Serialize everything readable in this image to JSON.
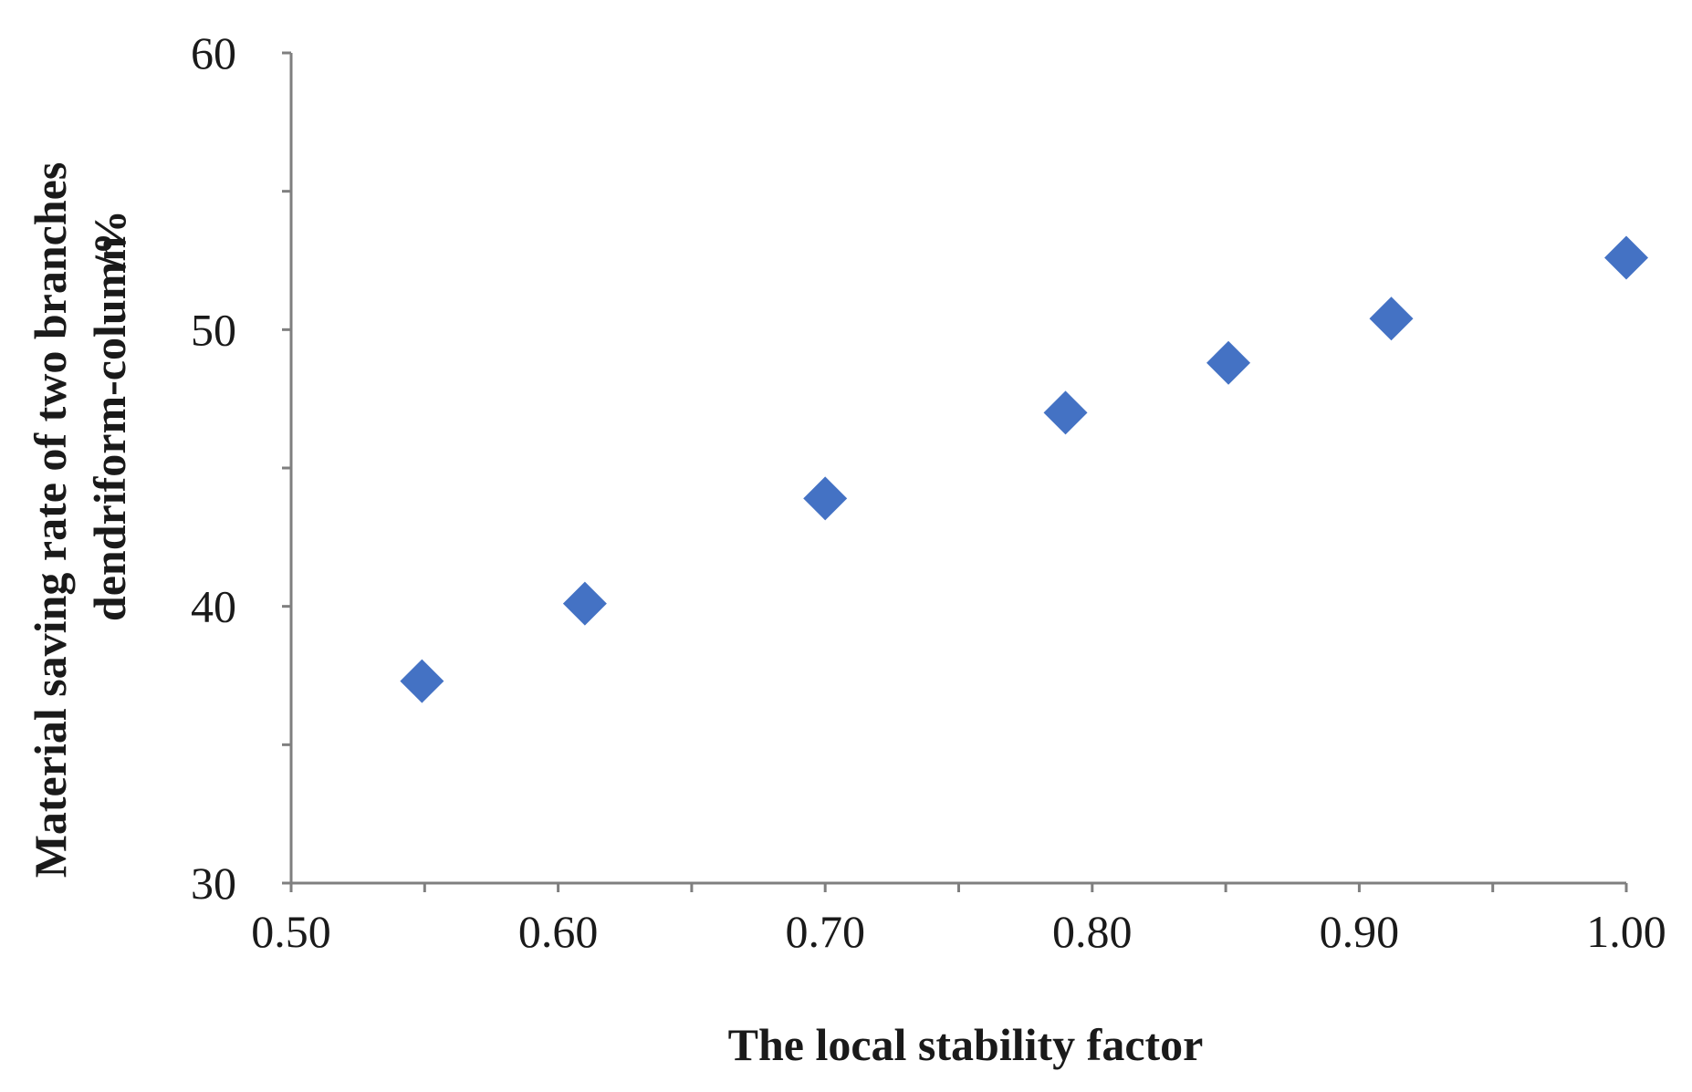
{
  "chart_data": {
    "type": "scatter",
    "title": "",
    "xlabel": "The  local stability factor",
    "ylabel_lines": [
      "Material saving rate of two branches",
      "dendriform-column"
    ],
    "ylabel_unit": "/%",
    "xlim": [
      0.5,
      1.0
    ],
    "ylim": [
      30,
      60
    ],
    "x_ticks": [
      0.5,
      0.6,
      0.7,
      0.8,
      0.9,
      1.0
    ],
    "x_tick_labels": [
      "0.50",
      "0.60",
      "0.70",
      "0.80",
      "0.90",
      "1.00"
    ],
    "x_minor_ticks": [
      0.55,
      0.65,
      0.75,
      0.85,
      0.95
    ],
    "y_ticks": [
      30,
      40,
      50,
      60
    ],
    "y_tick_labels": [
      "30",
      "40",
      "50",
      "60"
    ],
    "y_minor_ticks": [
      35,
      45,
      55
    ],
    "grid": false,
    "legend": "none",
    "marker": "diamond",
    "marker_color": "#4472c4",
    "axis_color": "#7f7f7f",
    "series": [
      {
        "x": [
          0.549,
          0.61,
          0.7,
          0.79,
          0.851,
          0.912,
          1.0
        ],
        "y": [
          37.3,
          40.1,
          43.9,
          47.0,
          48.8,
          50.4,
          52.6
        ]
      }
    ]
  }
}
